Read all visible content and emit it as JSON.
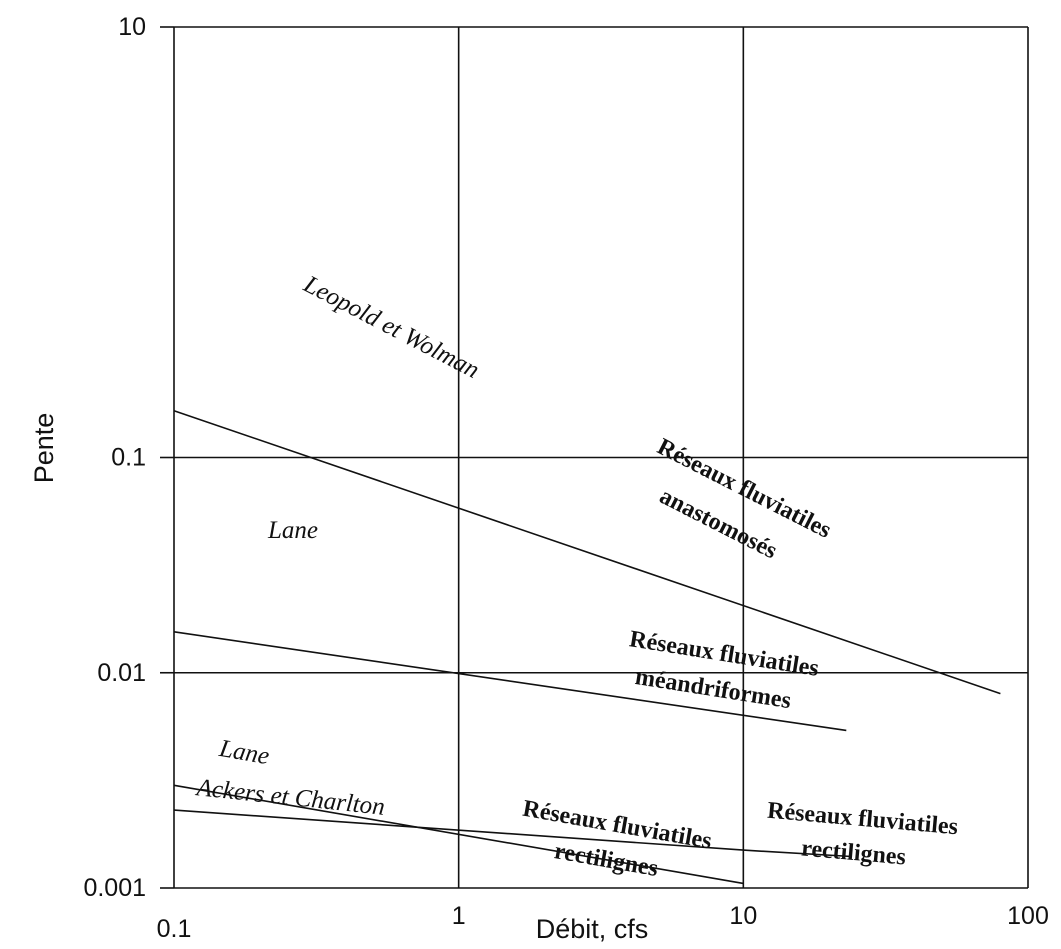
{
  "chart_data": {
    "type": "line",
    "xlabel": "Débit, cfs",
    "ylabel": "Pente",
    "x_scale": "log",
    "y_scale": "log",
    "xlim": [
      0.1,
      100
    ],
    "ylim": [
      0.001,
      10
    ],
    "grid": true,
    "x_ticks": [
      "0.1",
      "1",
      "10",
      "100"
    ],
    "y_ticks": [
      "0.001",
      "0.01",
      "0.1",
      "10"
    ],
    "series": [
      {
        "name": "Leopold et Wolman",
        "x": [
          0.1,
          80
        ],
        "y": [
          0.165,
          0.008
        ]
      },
      {
        "name": "Lane",
        "x": [
          0.1,
          23
        ],
        "y": [
          0.0155,
          0.0054
        ]
      },
      {
        "name": "Lane",
        "x": [
          0.1,
          10
        ],
        "y": [
          0.003,
          0.00105
        ]
      },
      {
        "name": "Ackers et Charlton",
        "x": [
          0.1,
          10,
          24
        ],
        "y": [
          0.0023,
          0.0015,
          0.0014
        ]
      }
    ],
    "annotations": [
      {
        "text": "Leopold et Wolman",
        "style": "italic"
      },
      {
        "text": "Lane",
        "style": "italic"
      },
      {
        "text": "Lane",
        "style": "italic"
      },
      {
        "text": "Ackers et Charlton",
        "style": "italic"
      },
      {
        "text": "Réseaux fluviatiles",
        "style": "bold"
      },
      {
        "text": "anastomosés",
        "style": "bold"
      },
      {
        "text": "Réseaux fluviatiles",
        "style": "bold"
      },
      {
        "text": "méandriformes",
        "style": "bold"
      },
      {
        "text": "Réseaux fluviatiles",
        "style": "bold"
      },
      {
        "text": "rectilignes",
        "style": "bold"
      },
      {
        "text": "Réseaux fluviatiles",
        "style": "bold"
      },
      {
        "text": "rectilignes",
        "style": "bold"
      }
    ]
  }
}
